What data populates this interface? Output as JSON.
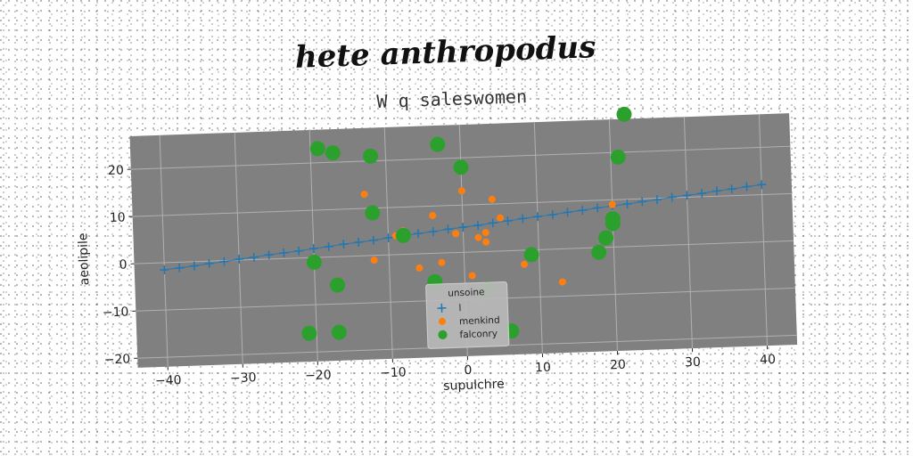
{
  "chart_data": {
    "type": "scatter",
    "title": "hete anthropodus",
    "subtitle": "W q saleswomen",
    "xlabel": "supulchre",
    "ylabel": "aeolipile",
    "xlim": [
      -44,
      44
    ],
    "ylim": [
      -22,
      27
    ],
    "x_ticks": [
      -40,
      -30,
      -20,
      -10,
      0,
      10,
      20,
      30,
      40
    ],
    "y_ticks": [
      -20,
      -10,
      0,
      10,
      20
    ],
    "grid": true,
    "legend_position": "bottom-center",
    "legend_title": "unsoine",
    "series": [
      {
        "name": "l",
        "marker": "plus",
        "color": "#1f77b4",
        "x": [
          -40,
          -38,
          -36,
          -34,
          -32,
          -30,
          -28,
          -26,
          -24,
          -22,
          -20,
          -18,
          -16,
          -14,
          -12,
          -10,
          -8,
          -6,
          -4,
          -2,
          0,
          2,
          4,
          6,
          8,
          10,
          12,
          14,
          16,
          18,
          20,
          22,
          24,
          26,
          28,
          30,
          32,
          34,
          36,
          38,
          40
        ],
        "y": [
          -1.5,
          -1.2,
          -0.9,
          -0.5,
          -0.2,
          0.2,
          0.5,
          0.9,
          1.2,
          1.5,
          1.9,
          2.2,
          2.6,
          2.9,
          3.2,
          3.6,
          3.9,
          4.3,
          4.6,
          5.0,
          5.3,
          5.6,
          6.0,
          6.3,
          6.7,
          7.0,
          7.3,
          7.7,
          8.0,
          8.4,
          8.7,
          9.0,
          9.4,
          9.7,
          10.1,
          10.4,
          10.7,
          11.1,
          11.4,
          11.8,
          12.1
        ]
      },
      {
        "name": "menkind",
        "marker": "circle-small",
        "color": "#ff7f0e",
        "x": [
          -13,
          -12,
          -9,
          -8,
          -6,
          -4,
          -3,
          -1,
          0,
          1,
          2,
          3,
          3,
          4,
          5,
          8,
          13,
          20
        ],
        "y": [
          13,
          -1,
          4,
          5,
          -3,
          8,
          -2,
          4,
          13,
          -5,
          3,
          4,
          2,
          11,
          7,
          -3,
          -7,
          9
        ]
      },
      {
        "name": "falconry",
        "marker": "circle-large",
        "color": "#2ca02c",
        "x": [
          -19,
          -17,
          -12,
          -12,
          -3,
          0,
          -8,
          -20,
          -17,
          -21,
          -17,
          -4,
          3,
          6,
          9,
          18,
          19,
          20,
          20,
          21,
          22
        ],
        "y": [
          23,
          22,
          21,
          9,
          23,
          18,
          4,
          -1,
          -6,
          -16,
          -16,
          -6,
          -8,
          -17,
          -1,
          -1,
          2,
          5,
          6,
          19,
          28
        ]
      }
    ]
  }
}
